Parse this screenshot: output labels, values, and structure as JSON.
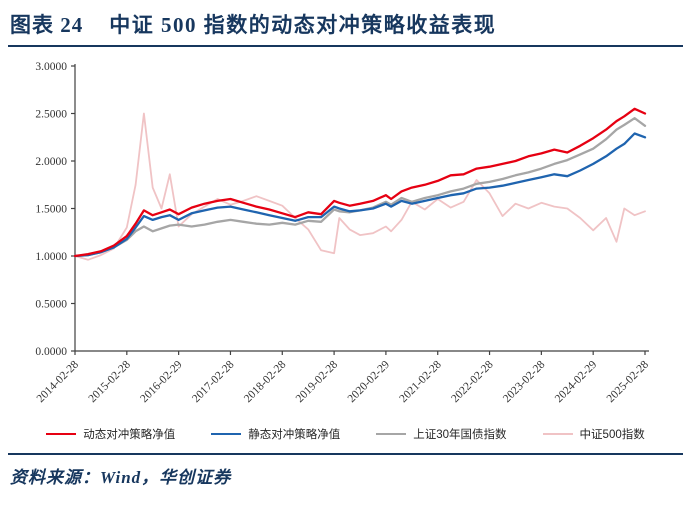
{
  "header": {
    "label": "图表 24",
    "title": "中证 500 指数的动态对冲策略收益表现"
  },
  "footer": {
    "source": "资料来源：Wind，华创证券"
  },
  "colors": {
    "accent_navy": "#17375e",
    "axis": "#404040",
    "series_red": "#e60012",
    "series_blue": "#1f64af",
    "series_gray": "#a6a6a6",
    "series_pink": "#f0c3c5"
  },
  "chart_data": {
    "type": "line",
    "title": "",
    "xlabel": "",
    "ylabel": "",
    "grid": false,
    "legend_position": "bottom",
    "ylim": [
      0,
      3
    ],
    "xlim": [
      0,
      11
    ],
    "y_tick_labels": [
      "0.0000",
      "0.5000",
      "1.0000",
      "1.5000",
      "2.0000",
      "2.5000",
      "3.0000"
    ],
    "x_tick_labels": [
      "2014-02-28",
      "2015-02-28",
      "2016-02-29",
      "2017-02-28",
      "2018-02-28",
      "2019-02-28",
      "2020-02-29",
      "2021-02-28",
      "2022-02-28",
      "2023-02-28",
      "2024-02-29",
      "2025-02-28"
    ],
    "x_unit": "years since 2014-02-28",
    "x": [
      0,
      0.25,
      0.5,
      0.75,
      1.0,
      1.17,
      1.33,
      1.5,
      1.67,
      1.83,
      2.0,
      2.25,
      2.5,
      2.75,
      3.0,
      3.25,
      3.5,
      3.75,
      4.0,
      4.25,
      4.5,
      4.75,
      5.0,
      5.1,
      5.3,
      5.5,
      5.75,
      6.0,
      6.1,
      6.3,
      6.5,
      6.75,
      7.0,
      7.25,
      7.5,
      7.75,
      8.0,
      8.25,
      8.5,
      8.75,
      9.0,
      9.25,
      9.5,
      9.75,
      10.0,
      10.25,
      10.45,
      10.6,
      10.8,
      11.0
    ],
    "series": [
      {
        "name": "动态对冲策略净值",
        "color": "#e60012",
        "stroke_width": 2.3,
        "values": [
          1.0,
          1.02,
          1.05,
          1.11,
          1.21,
          1.34,
          1.48,
          1.43,
          1.46,
          1.49,
          1.44,
          1.51,
          1.55,
          1.58,
          1.6,
          1.56,
          1.52,
          1.49,
          1.45,
          1.41,
          1.46,
          1.44,
          1.58,
          1.56,
          1.53,
          1.55,
          1.58,
          1.64,
          1.6,
          1.68,
          1.72,
          1.75,
          1.79,
          1.85,
          1.86,
          1.92,
          1.94,
          1.97,
          2.0,
          2.05,
          2.08,
          2.12,
          2.09,
          2.16,
          2.24,
          2.33,
          2.42,
          2.47,
          2.55,
          2.5
        ]
      },
      {
        "name": "静态对冲策略净值",
        "color": "#1f64af",
        "stroke_width": 2.3,
        "values": [
          1.0,
          1.01,
          1.04,
          1.09,
          1.18,
          1.3,
          1.42,
          1.38,
          1.41,
          1.43,
          1.38,
          1.45,
          1.48,
          1.51,
          1.52,
          1.49,
          1.46,
          1.43,
          1.4,
          1.37,
          1.41,
          1.41,
          1.52,
          1.5,
          1.47,
          1.48,
          1.5,
          1.55,
          1.52,
          1.58,
          1.55,
          1.58,
          1.61,
          1.64,
          1.66,
          1.71,
          1.72,
          1.74,
          1.77,
          1.8,
          1.83,
          1.86,
          1.84,
          1.9,
          1.97,
          2.05,
          2.13,
          2.18,
          2.29,
          2.25
        ]
      },
      {
        "name": "上证30年国债指数",
        "color": "#a6a6a6",
        "stroke_width": 2.3,
        "values": [
          1.0,
          1.01,
          1.04,
          1.09,
          1.17,
          1.26,
          1.31,
          1.26,
          1.29,
          1.32,
          1.33,
          1.31,
          1.33,
          1.36,
          1.38,
          1.36,
          1.34,
          1.33,
          1.35,
          1.33,
          1.37,
          1.36,
          1.49,
          1.47,
          1.46,
          1.48,
          1.51,
          1.57,
          1.54,
          1.61,
          1.57,
          1.61,
          1.64,
          1.68,
          1.71,
          1.76,
          1.78,
          1.81,
          1.85,
          1.88,
          1.92,
          1.97,
          2.01,
          2.07,
          2.13,
          2.23,
          2.33,
          2.38,
          2.45,
          2.37
        ]
      },
      {
        "name": "中证500指数",
        "color": "#f0c3c5",
        "stroke_width": 1.8,
        "values": [
          1.0,
          0.96,
          1.01,
          1.08,
          1.3,
          1.75,
          2.5,
          1.72,
          1.5,
          1.86,
          1.31,
          1.44,
          1.52,
          1.6,
          1.54,
          1.58,
          1.63,
          1.58,
          1.53,
          1.4,
          1.28,
          1.06,
          1.03,
          1.4,
          1.28,
          1.22,
          1.24,
          1.31,
          1.26,
          1.38,
          1.57,
          1.49,
          1.6,
          1.51,
          1.57,
          1.8,
          1.66,
          1.42,
          1.55,
          1.5,
          1.56,
          1.52,
          1.5,
          1.4,
          1.27,
          1.4,
          1.15,
          1.5,
          1.43,
          1.47
        ]
      }
    ]
  }
}
